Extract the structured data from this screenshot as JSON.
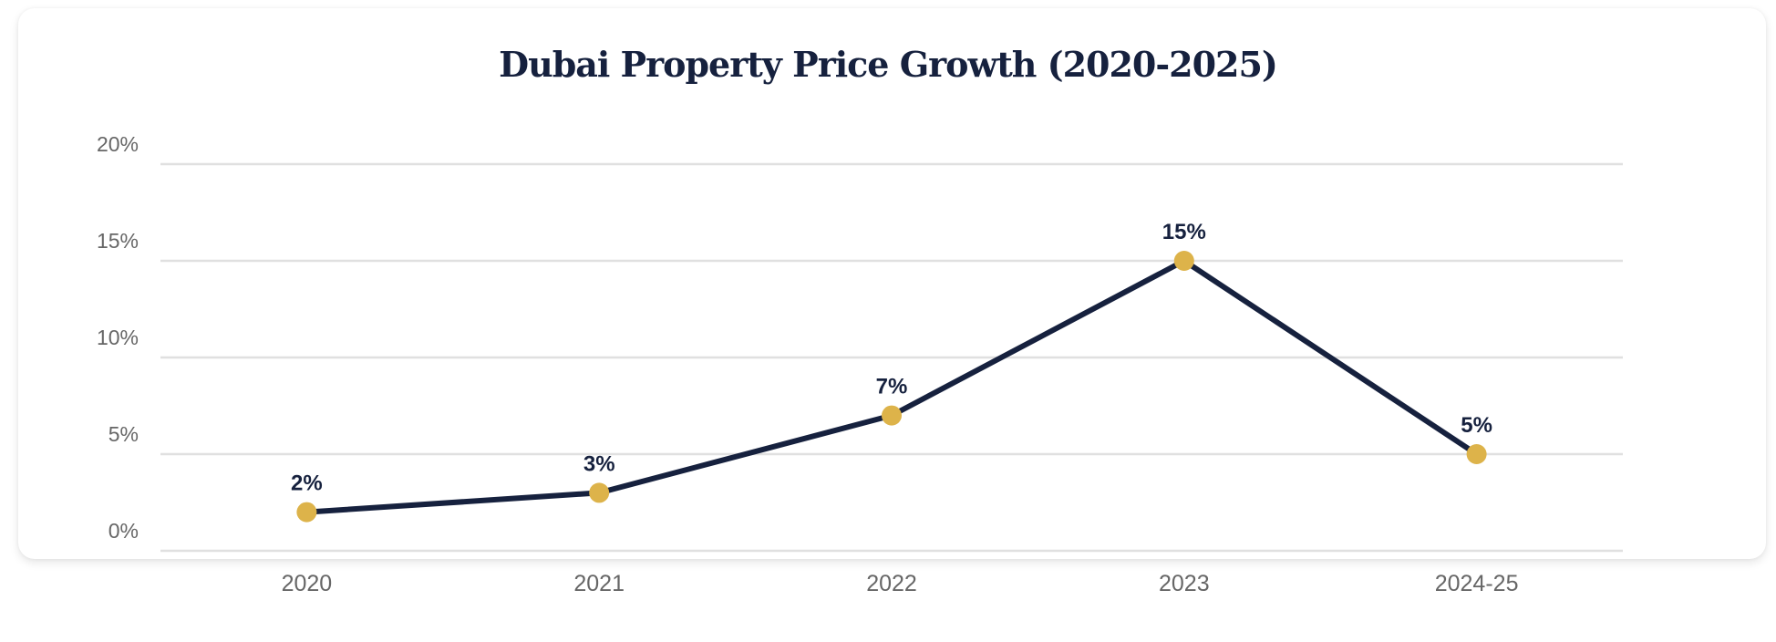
{
  "chart_data": {
    "type": "line",
    "title": "Dubai Property Price Growth (2020-2025)",
    "categories": [
      "2020",
      "2021",
      "2022",
      "2023",
      "2024-25"
    ],
    "values": [
      2,
      3,
      7,
      15,
      5
    ],
    "data_labels": [
      "2%",
      "3%",
      "7%",
      "15%",
      "5%"
    ],
    "xlabel": "",
    "ylabel": "",
    "ylim": [
      0,
      20
    ],
    "yticks": [
      0,
      5,
      10,
      15,
      20
    ],
    "ytick_labels": [
      "0%",
      "5%",
      "10%",
      "15%",
      "20%"
    ],
    "grid": true,
    "legend": "none",
    "colors": {
      "line": "#16213e",
      "marker": "#ddb34a",
      "grid": "#e0e0e0"
    }
  }
}
